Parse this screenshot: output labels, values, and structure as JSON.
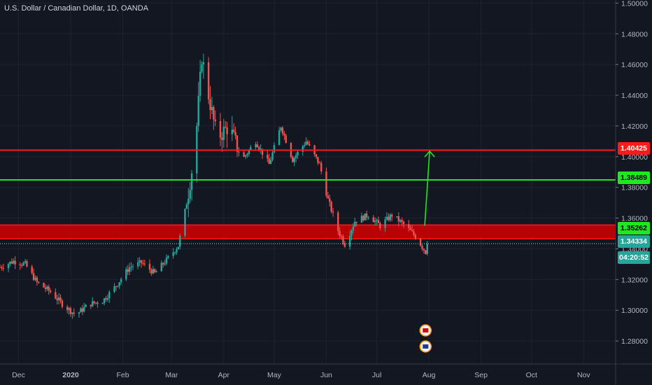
{
  "header": {
    "title": "U.S. Dollar / Canadian Dollar, 1D, OANDA"
  },
  "colors": {
    "background": "#131722",
    "up": "#26a69a",
    "down": "#ef5350",
    "resistance": "#ff1a1a",
    "support": "#1ee81e",
    "zone": "#d50000",
    "grid": "#1e2230"
  },
  "price_badges": [
    {
      "label": "1.40425",
      "color": "#ff1a1a"
    },
    {
      "label": "1.38489",
      "color": "#1ee81e"
    },
    {
      "label": "1.35262",
      "color": "#1ee81e"
    },
    {
      "label": "1.34334",
      "color": "#26a69a"
    },
    {
      "label": "04:20:52",
      "color": "#26a69a"
    }
  ],
  "chart_data": {
    "type": "candlestick",
    "x_ticks": [
      "Dec",
      "2020",
      "Feb",
      "Mar",
      "Apr",
      "May",
      "Jun",
      "Jul",
      "Aug",
      "Sep",
      "Oct",
      "Nov"
    ],
    "y_ticks": [
      "1.28000",
      "1.30000",
      "1.32000",
      "1.34000",
      "1.36000",
      "1.38000",
      "1.40000",
      "1.42000",
      "1.44000",
      "1.46000",
      "1.48000",
      "1.50000"
    ],
    "ylim": [
      1.265,
      1.502
    ],
    "xlim": [
      "2019-11-20",
      "2020-11-20"
    ],
    "price_path": [
      [
        "2019-11-20",
        1.328
      ],
      [
        "2019-11-28",
        1.332
      ],
      [
        "2019-12-05",
        1.33
      ],
      [
        "2019-12-12",
        1.318
      ],
      [
        "2019-12-20",
        1.312
      ],
      [
        "2019-12-28",
        1.303
      ],
      [
        "2020-01-04",
        1.297
      ],
      [
        "2020-01-12",
        1.304
      ],
      [
        "2020-01-20",
        1.306
      ],
      [
        "2020-01-28",
        1.316
      ],
      [
        "2020-02-05",
        1.328
      ],
      [
        "2020-02-12",
        1.331
      ],
      [
        "2020-02-20",
        1.324
      ],
      [
        "2020-02-28",
        1.334
      ],
      [
        "2020-03-05",
        1.342
      ],
      [
        "2020-03-10",
        1.37
      ],
      [
        "2020-03-15",
        1.405
      ],
      [
        "2020-03-19",
        1.465
      ],
      [
        "2020-03-23",
        1.44
      ],
      [
        "2020-03-28",
        1.412
      ],
      [
        "2020-04-04",
        1.42
      ],
      [
        "2020-04-12",
        1.398
      ],
      [
        "2020-04-20",
        1.41
      ],
      [
        "2020-04-28",
        1.395
      ],
      [
        "2020-05-05",
        1.42
      ],
      [
        "2020-05-12",
        1.398
      ],
      [
        "2020-05-20",
        1.41
      ],
      [
        "2020-05-28",
        1.395
      ],
      [
        "2020-06-02",
        1.372
      ],
      [
        "2020-06-08",
        1.352
      ],
      [
        "2020-06-12",
        1.343
      ],
      [
        "2020-06-18",
        1.358
      ],
      [
        "2020-06-26",
        1.362
      ],
      [
        "2020-07-03",
        1.355
      ],
      [
        "2020-07-10",
        1.362
      ],
      [
        "2020-07-18",
        1.355
      ],
      [
        "2020-07-24",
        1.348
      ],
      [
        "2020-07-30",
        1.338
      ],
      [
        "2020-07-31",
        1.3433
      ]
    ],
    "horizontal_lines": [
      {
        "price": 1.40425,
        "color": "#ff1a1a"
      },
      {
        "price": 1.38489,
        "color": "#1ee81e"
      },
      {
        "price": 1.34334,
        "color": "#c7c9d1",
        "style": "dotted"
      }
    ],
    "zone": {
      "from": 1.3465,
      "to": 1.3555
    },
    "projection": {
      "from_date": "2020-08-01",
      "from_price": 1.355,
      "to_price": 1.4035
    },
    "event_markers": [
      "5",
      "6"
    ]
  }
}
